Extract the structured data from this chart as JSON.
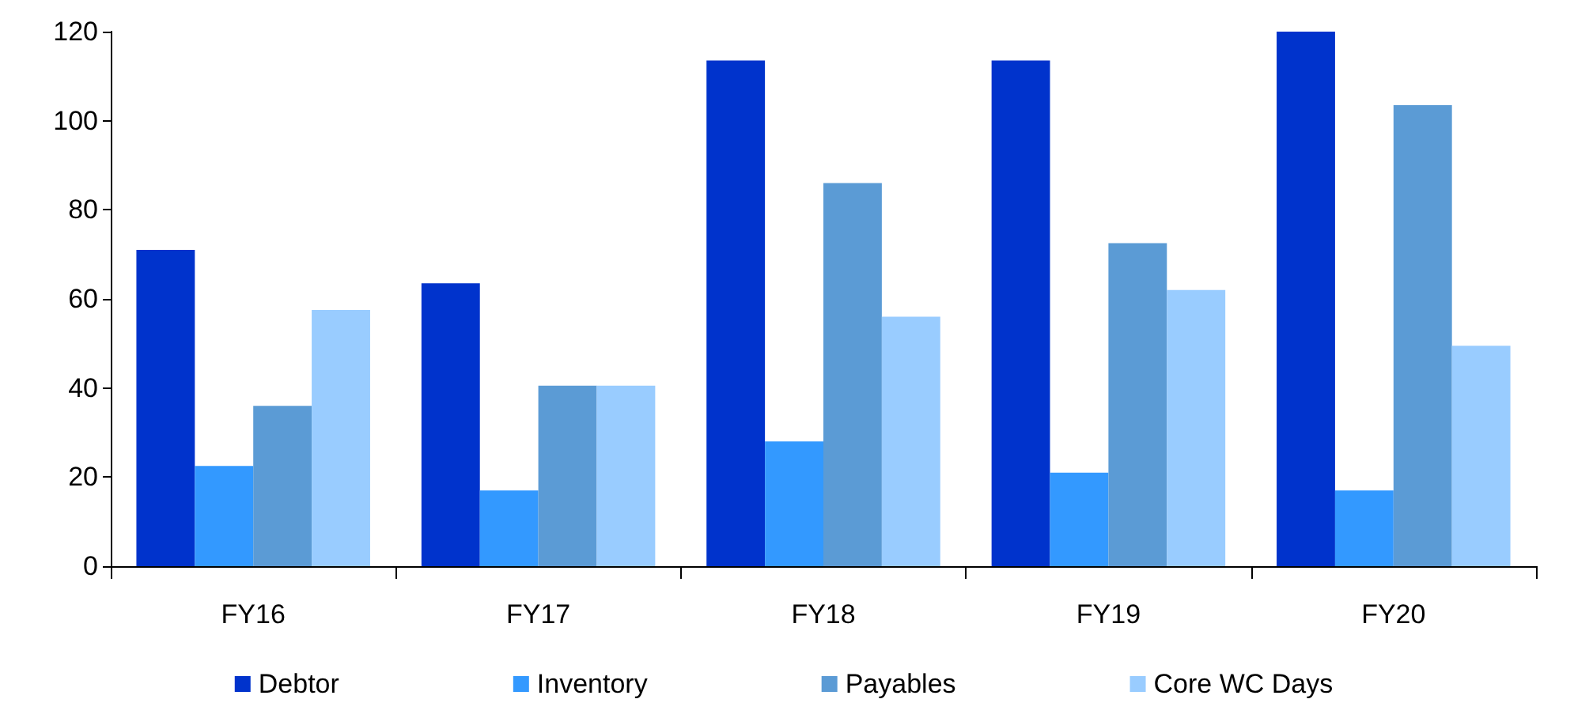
{
  "chart_data": {
    "type": "bar",
    "categories": [
      "FY16",
      "FY17",
      "FY18",
      "FY19",
      "FY20"
    ],
    "series": [
      {
        "name": "Debtor",
        "color": "#0033cc",
        "values": [
          71,
          63.5,
          113.5,
          113.5,
          120
        ]
      },
      {
        "name": "Inventory",
        "color": "#3399ff",
        "values": [
          22.5,
          17,
          28,
          21,
          17
        ]
      },
      {
        "name": "Payables",
        "color": "#5b9bd5",
        "values": [
          36,
          40.5,
          86,
          72.5,
          103.5
        ]
      },
      {
        "name": "Core WC Days",
        "color": "#99ccff",
        "values": [
          57.5,
          40.5,
          56,
          62,
          49.5
        ]
      }
    ],
    "ylim": [
      0,
      120
    ],
    "yticks": [
      0,
      20,
      40,
      60,
      80,
      100,
      120
    ],
    "grid": false,
    "legend": "bottom"
  }
}
